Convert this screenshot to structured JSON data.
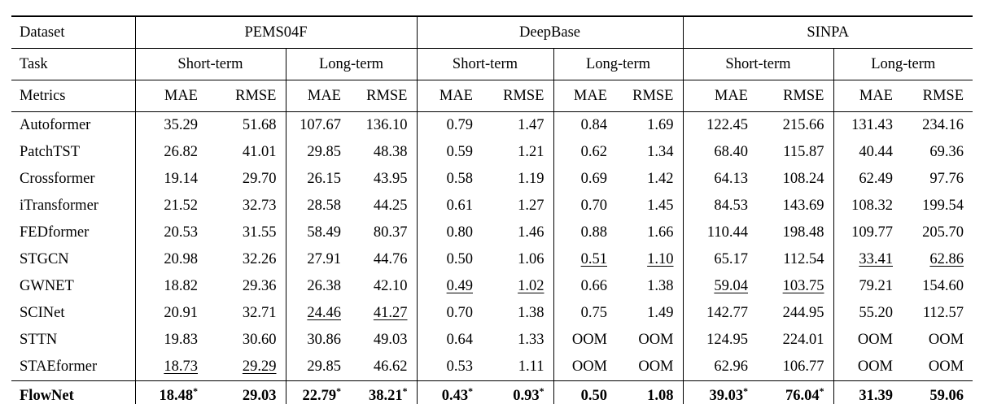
{
  "table": {
    "header": {
      "dataset_label": "Dataset",
      "task_label": "Task",
      "metrics_label": "Metrics",
      "datasets": [
        "PEMS04F",
        "DeepBase",
        "SINPA"
      ],
      "tasks": [
        "Short-term",
        "Long-term"
      ],
      "metrics": [
        "MAE",
        "RMSE"
      ]
    },
    "rows": [
      {
        "model": "Autoformer",
        "values": [
          "35.29",
          "51.68",
          "107.67",
          "136.10",
          "0.79",
          "1.47",
          "0.84",
          "1.69",
          "122.45",
          "215.66",
          "131.43",
          "234.16"
        ],
        "underline": []
      },
      {
        "model": "PatchTST",
        "values": [
          "26.82",
          "41.01",
          "29.85",
          "48.38",
          "0.59",
          "1.21",
          "0.62",
          "1.34",
          "68.40",
          "115.87",
          "40.44",
          "69.36"
        ],
        "underline": []
      },
      {
        "model": "Crossformer",
        "values": [
          "19.14",
          "29.70",
          "26.15",
          "43.95",
          "0.58",
          "1.19",
          "0.69",
          "1.42",
          "64.13",
          "108.24",
          "62.49",
          "97.76"
        ],
        "underline": []
      },
      {
        "model": "iTransformer",
        "values": [
          "21.52",
          "32.73",
          "28.58",
          "44.25",
          "0.61",
          "1.27",
          "0.70",
          "1.45",
          "84.53",
          "143.69",
          "108.32",
          "199.54"
        ],
        "underline": []
      },
      {
        "model": "FEDformer",
        "values": [
          "20.53",
          "31.55",
          "58.49",
          "80.37",
          "0.80",
          "1.46",
          "0.88",
          "1.66",
          "110.44",
          "198.48",
          "109.77",
          "205.70"
        ],
        "underline": []
      },
      {
        "model": "STGCN",
        "values": [
          "20.98",
          "32.26",
          "27.91",
          "44.76",
          "0.50",
          "1.06",
          "0.51",
          "1.10",
          "65.17",
          "112.54",
          "33.41",
          "62.86"
        ],
        "underline": [
          6,
          7,
          10,
          11
        ]
      },
      {
        "model": "GWNET",
        "values": [
          "18.82",
          "29.36",
          "26.38",
          "42.10",
          "0.49",
          "1.02",
          "0.66",
          "1.38",
          "59.04",
          "103.75",
          "79.21",
          "154.60"
        ],
        "underline": [
          4,
          5,
          8,
          9
        ]
      },
      {
        "model": "SCINet",
        "values": [
          "20.91",
          "32.71",
          "24.46",
          "41.27",
          "0.70",
          "1.38",
          "0.75",
          "1.49",
          "142.77",
          "244.95",
          "55.20",
          "112.57"
        ],
        "underline": [
          2,
          3
        ]
      },
      {
        "model": "STTN",
        "values": [
          "19.83",
          "30.60",
          "30.86",
          "49.03",
          "0.64",
          "1.33",
          "OOM",
          "OOM",
          "124.95",
          "224.01",
          "OOM",
          "OOM"
        ],
        "underline": []
      },
      {
        "model": "STAEformer",
        "values": [
          "18.73",
          "29.29",
          "29.85",
          "46.62",
          "0.53",
          "1.11",
          "OOM",
          "OOM",
          "62.96",
          "106.77",
          "OOM",
          "OOM"
        ],
        "underline": [
          0,
          1
        ]
      }
    ],
    "highlight_row": {
      "model": "FlowNet",
      "values": [
        "18.48*",
        "29.03",
        "22.79*",
        "38.21*",
        "0.43*",
        "0.93*",
        "0.50",
        "1.08",
        "39.03*",
        "76.04*",
        "31.39",
        "59.06"
      ],
      "underline": [],
      "bold": true
    }
  }
}
